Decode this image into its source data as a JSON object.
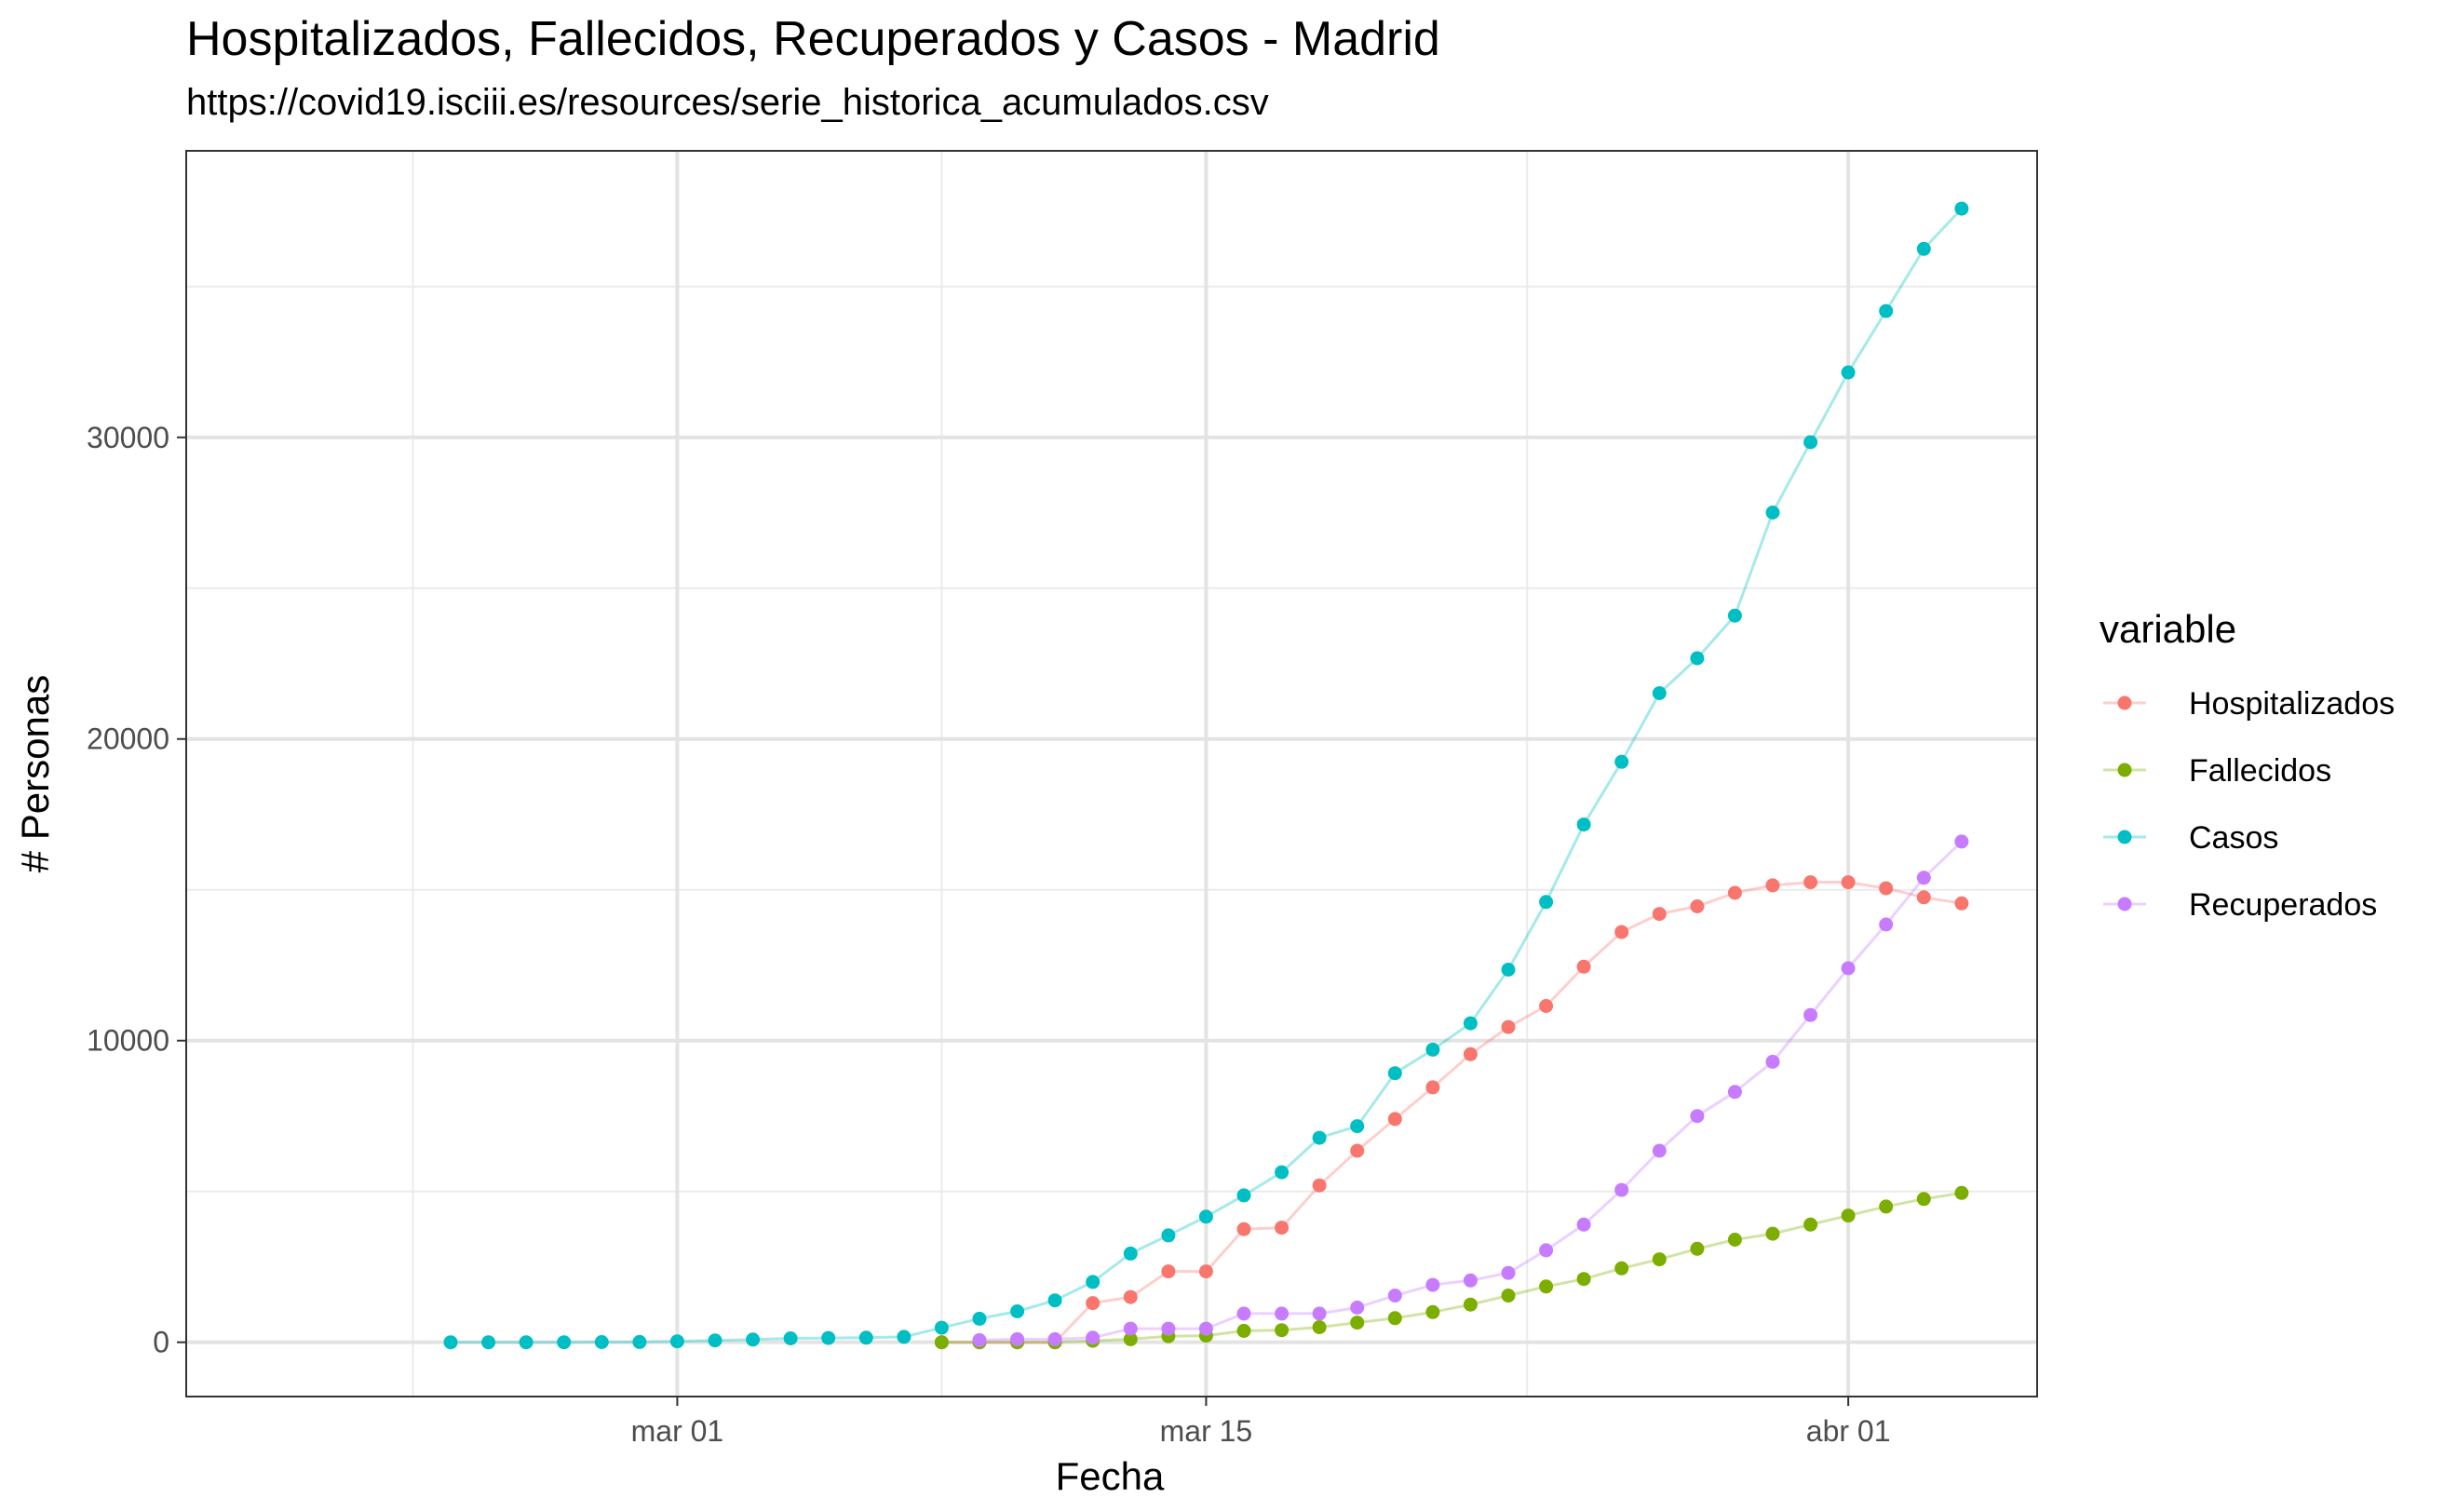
{
  "chart_data": {
    "type": "line",
    "title": "Hospitalizados, Fallecidos, Recuperados y Casos - Madrid",
    "subtitle": "https://covid19.isciii.es/resources/serie_historica_acumulados.csv",
    "xlabel": "Fecha",
    "ylabel": "# Personas",
    "x_ticks": [
      {
        "date": "2020-03-01",
        "label": "mar 01"
      },
      {
        "date": "2020-03-15",
        "label": "mar 15"
      },
      {
        "date": "2020-04-01",
        "label": "abr 01"
      }
    ],
    "y_ticks": [
      0,
      10000,
      20000,
      30000
    ],
    "xlim": [
      "2020-02-17",
      "2020-04-06"
    ],
    "ylim": [
      -1800,
      39500
    ],
    "grid": true,
    "legend_position": "right",
    "legend_title": "variable",
    "series": [
      {
        "name": "Hospitalizados",
        "color": "#F8766D",
        "start": "2020-03-08",
        "values": [
          0,
          0,
          0,
          0,
          1300,
          1500,
          2350,
          2350,
          3750,
          3800,
          5200,
          6350,
          7400,
          8450,
          9550,
          10450,
          11150,
          12450,
          13600,
          14200,
          14450,
          14900,
          15150,
          15250,
          15250,
          15050,
          14750,
          14550
        ]
      },
      {
        "name": "Fallecidos",
        "color": "#7CAE00",
        "start": "2020-03-08",
        "values": [
          0,
          0,
          0,
          0,
          50,
          100,
          200,
          220,
          380,
          400,
          500,
          650,
          800,
          1000,
          1250,
          1550,
          1850,
          2100,
          2450,
          2750,
          3100,
          3400,
          3600,
          3900,
          4200,
          4500,
          4750,
          4950
        ]
      },
      {
        "name": "Casos",
        "color": "#00BFC4",
        "start": "2020-02-24",
        "values": [
          0,
          0,
          0,
          0,
          5,
          10,
          29,
          60,
          90,
          130,
          140,
          150,
          180,
          480,
          780,
          1024,
          1388,
          2000,
          2940,
          3544,
          4165,
          4871,
          5637,
          6777,
          7165,
          8921,
          9702,
          10575,
          12352,
          14597,
          17166,
          19243,
          21520,
          22677,
          24090,
          27509,
          29840,
          32155,
          34188,
          36249,
          37584
        ]
      },
      {
        "name": "Recuperados",
        "color": "#C77CFF",
        "start": "2020-03-09",
        "values": [
          70,
          100,
          100,
          150,
          450,
          450,
          450,
          950,
          950,
          950,
          1150,
          1550,
          1900,
          2050,
          2300,
          3050,
          3900,
          5050,
          6350,
          7500,
          8300,
          9300,
          10850,
          12400,
          13850,
          15400,
          16600
        ]
      }
    ]
  }
}
